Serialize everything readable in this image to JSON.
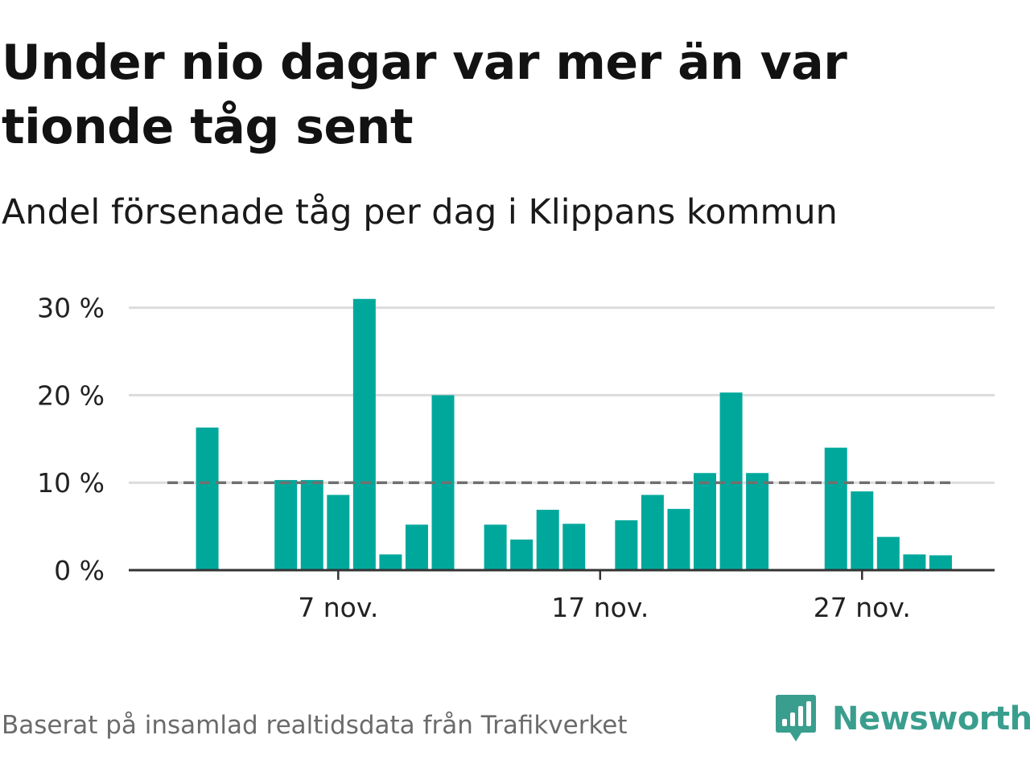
{
  "header": {
    "title": "Under nio dagar var mer än var tionde tåg sent",
    "subtitle": "Andel försenade tåg per dag i Klippans kommun"
  },
  "footer": {
    "source": "Baserat på insamlad realtidsdata från Trafikverket",
    "brand": "Newsworthy"
  },
  "colors": {
    "bar": "#00a89c",
    "reference_line": "#707070",
    "grid": "#dcdcdc",
    "brand": "#3a9e8e"
  },
  "chart_data": {
    "type": "bar",
    "x": [
      "1 nov.",
      "2 nov.",
      "3 nov.",
      "4 nov.",
      "5 nov.",
      "6 nov.",
      "7 nov.",
      "8 nov.",
      "9 nov.",
      "10 nov.",
      "11 nov.",
      "12 nov.",
      "13 nov.",
      "14 nov.",
      "15 nov.",
      "16 nov.",
      "17 nov.",
      "18 nov.",
      "19 nov.",
      "20 nov.",
      "21 nov.",
      "22 nov.",
      "23 nov.",
      "24 nov.",
      "25 nov.",
      "26 nov.",
      "27 nov.",
      "28 nov.",
      "29 nov.",
      "30 nov."
    ],
    "values": [
      null,
      16.3,
      null,
      null,
      10.3,
      10.3,
      8.6,
      31.0,
      1.8,
      5.2,
      20.0,
      null,
      5.2,
      3.5,
      6.9,
      5.3,
      null,
      5.7,
      8.6,
      7.0,
      11.1,
      20.3,
      11.1,
      null,
      null,
      14.0,
      9.0,
      3.8,
      1.8,
      1.7
    ],
    "xticks": [
      "7 nov.",
      "17 nov.",
      "27 nov."
    ],
    "yticks": [
      "0 %",
      "10 %",
      "20 %",
      "30 %"
    ],
    "ylim": [
      0,
      32
    ],
    "reference_line": 10,
    "grid": true
  }
}
